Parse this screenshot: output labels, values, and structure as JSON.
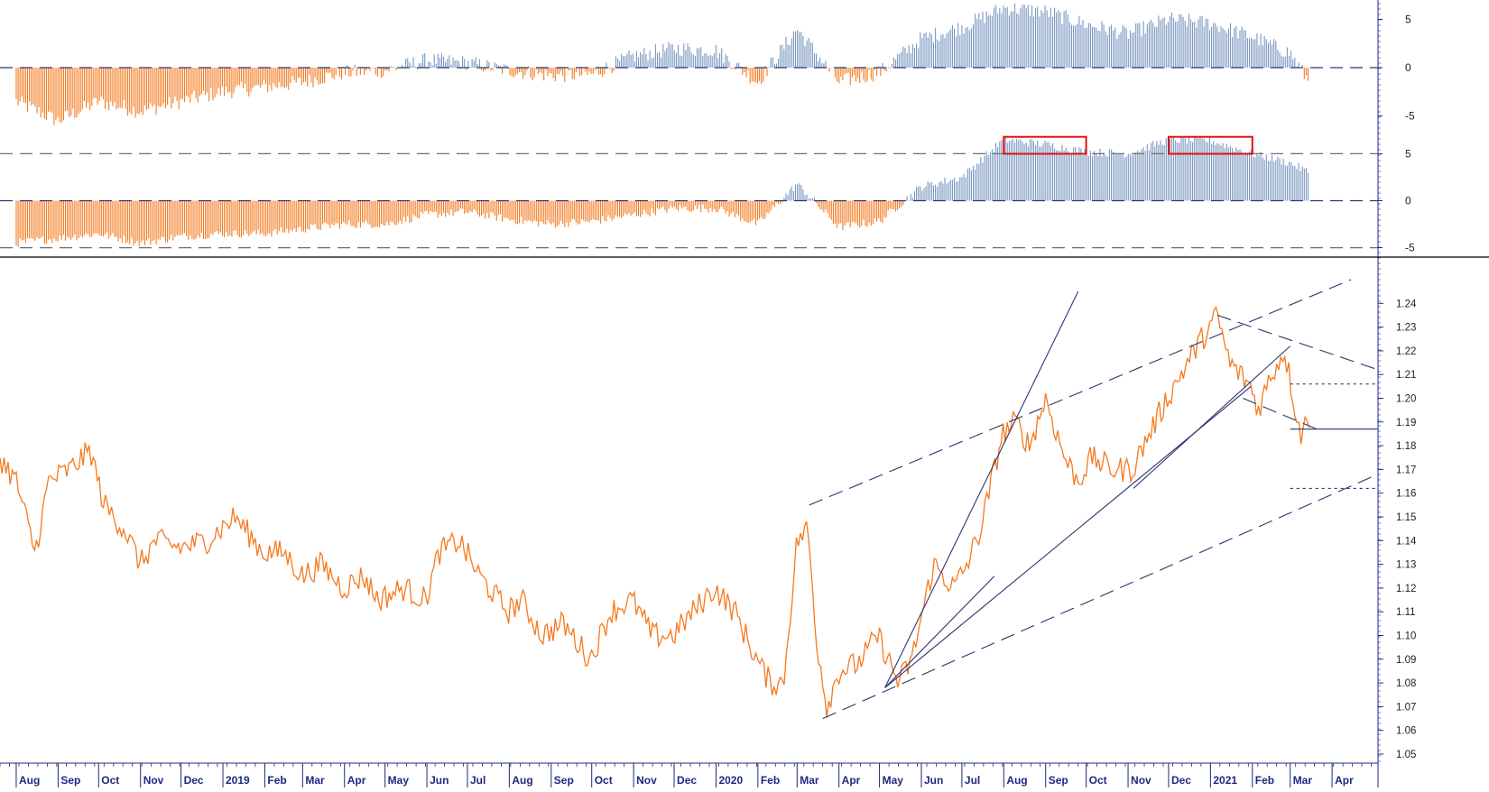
{
  "colors": {
    "up": "#7a97c0",
    "down": "#f47a1f",
    "price": "#f47a1f",
    "trend": "#2e3470",
    "highlight": "#e01010",
    "axis_text": "#1c2a80",
    "grid": "#6f6f6f"
  },
  "chart_data": [
    {
      "type": "bar",
      "panel": "oscillator-top",
      "ylim": [
        -7,
        7
      ],
      "ytick_labels": [
        "5",
        "0",
        "-5"
      ],
      "ytick_values": [
        5,
        0,
        -5
      ],
      "reference_lines": [
        0
      ],
      "series": [
        {
          "x": [
            "2018-08-01",
            "2018-09-01",
            "2018-10-01",
            "2018-11-01",
            "2018-12-01",
            "2019-01-01",
            "2019-02-01",
            "2019-03-01",
            "2019-04-01",
            "2019-05-01",
            "2019-06-01",
            "2019-07-01",
            "2019-08-01",
            "2019-09-01",
            "2019-10-01",
            "2019-11-01",
            "2019-12-01",
            "2020-01-01",
            "2020-02-01",
            "2020-03-01",
            "2020-04-01",
            "2020-05-01",
            "2020-06-01",
            "2020-07-01",
            "2020-08-01",
            "2020-09-01",
            "2020-10-01",
            "2020-11-01",
            "2020-12-01",
            "2021-01-01",
            "2021-02-01",
            "2021-03-01",
            "2021-03-15"
          ],
          "values": [
            -3.5,
            -5.5,
            -3.5,
            -4.5,
            -3.5,
            -2.5,
            -2,
            -1.5,
            -0.5,
            -0.3,
            0.8,
            0.5,
            -0.3,
            -0.8,
            -0.7,
            1.2,
            2,
            1.8,
            -1.5,
            4,
            -1.5,
            -0.5,
            3,
            4.2,
            6.2,
            5.8,
            4.5,
            3.5,
            5,
            4.6,
            3.2,
            1.5,
            -1.5
          ]
        }
      ]
    },
    {
      "type": "bar",
      "panel": "oscillator-middle",
      "ylim": [
        -6,
        6
      ],
      "ytick_labels": [
        "5",
        "0",
        "-5"
      ],
      "ytick_values": [
        5,
        0,
        -5
      ],
      "reference_lines": [
        5,
        0,
        -5
      ],
      "highlight_ranges": [
        [
          "2020-08-01",
          "2020-10-01"
        ],
        [
          "2020-12-01",
          "2021-02-01"
        ]
      ],
      "series": [
        {
          "x": [
            "2018-08-01",
            "2018-09-01",
            "2018-10-01",
            "2018-11-01",
            "2018-12-01",
            "2019-01-01",
            "2019-02-01",
            "2019-03-01",
            "2019-04-01",
            "2019-05-01",
            "2019-06-01",
            "2019-07-01",
            "2019-08-01",
            "2019-09-01",
            "2019-10-01",
            "2019-11-01",
            "2019-12-01",
            "2020-01-01",
            "2020-02-01",
            "2020-03-01",
            "2020-04-01",
            "2020-05-01",
            "2020-06-01",
            "2020-07-01",
            "2020-08-01",
            "2020-09-01",
            "2020-10-01",
            "2020-11-01",
            "2020-12-01",
            "2021-01-01",
            "2021-02-01",
            "2021-03-01",
            "2021-03-15"
          ],
          "values": [
            -4.5,
            -4,
            -3.5,
            -4.5,
            -3.8,
            -3.5,
            -3.5,
            -3,
            -2.5,
            -2.5,
            -1.5,
            -1.2,
            -2,
            -2.5,
            -2.2,
            -1.5,
            -0.8,
            -0.8,
            -2.5,
            1.8,
            -2.8,
            -2.2,
            1.5,
            2.5,
            6.5,
            6,
            5.2,
            5,
            6.5,
            6.4,
            5,
            4,
            3
          ]
        }
      ]
    },
    {
      "type": "line",
      "panel": "price",
      "ylim": [
        1.05,
        1.25
      ],
      "ytick_labels": [
        "1.24",
        "1.23",
        "1.22",
        "1.21",
        "1.20",
        "1.19",
        "1.18",
        "1.17",
        "1.16",
        "1.15",
        "1.14",
        "1.13",
        "1.12",
        "1.11",
        "1.10",
        "1.09",
        "1.08",
        "1.07",
        "1.06",
        "1.05"
      ],
      "ytick_values": [
        1.24,
        1.23,
        1.22,
        1.21,
        1.2,
        1.19,
        1.18,
        1.17,
        1.16,
        1.15,
        1.14,
        1.13,
        1.12,
        1.11,
        1.1,
        1.09,
        1.08,
        1.07,
        1.06,
        1.05
      ],
      "xlim": [
        "2018-07-20",
        "2021-05-05"
      ],
      "xtick_labels": [
        "Aug",
        "Sep",
        "Oct",
        "Nov",
        "Dec",
        "2019",
        "Feb",
        "Mar",
        "Apr",
        "May",
        "Jun",
        "Jul",
        "Aug",
        "Sep",
        "Oct",
        "Nov",
        "Dec",
        "2020",
        "Feb",
        "Mar",
        "Apr",
        "May",
        "Jun",
        "Jul",
        "Aug",
        "Sep",
        "Oct",
        "Nov",
        "Dec",
        "2021",
        "Feb",
        "Mar",
        "Apr"
      ],
      "xtick_values": [
        "2018-08-01",
        "2018-09-01",
        "2018-10-01",
        "2018-11-01",
        "2018-12-01",
        "2019-01-01",
        "2019-02-01",
        "2019-03-01",
        "2019-04-01",
        "2019-05-01",
        "2019-06-01",
        "2019-07-01",
        "2019-08-01",
        "2019-09-01",
        "2019-10-01",
        "2019-11-01",
        "2019-12-01",
        "2020-01-01",
        "2020-02-01",
        "2020-03-01",
        "2020-04-01",
        "2020-05-01",
        "2020-06-01",
        "2020-07-01",
        "2020-08-01",
        "2020-09-01",
        "2020-10-01",
        "2020-11-01",
        "2020-12-01",
        "2021-01-01",
        "2021-02-01",
        "2021-03-01",
        "2021-04-01"
      ],
      "series": [
        {
          "x": [
            "2018-07-20",
            "2018-08-01",
            "2018-08-15",
            "2018-08-25",
            "2018-09-10",
            "2018-09-25",
            "2018-10-05",
            "2018-10-20",
            "2018-11-01",
            "2018-11-12",
            "2018-12-01",
            "2018-12-20",
            "2019-01-10",
            "2019-01-31",
            "2019-02-15",
            "2019-03-01",
            "2019-03-15",
            "2019-03-31",
            "2019-04-15",
            "2019-04-26",
            "2019-05-15",
            "2019-05-31",
            "2019-06-10",
            "2019-06-25",
            "2019-07-10",
            "2019-07-31",
            "2019-08-10",
            "2019-08-25",
            "2019-09-10",
            "2019-09-30",
            "2019-10-15",
            "2019-10-31",
            "2019-11-15",
            "2019-11-30",
            "2019-12-15",
            "2019-12-31",
            "2020-01-15",
            "2020-01-31",
            "2020-02-10",
            "2020-02-20",
            "2020-03-01",
            "2020-03-09",
            "2020-03-15",
            "2020-03-23",
            "2020-04-01",
            "2020-04-15",
            "2020-04-30",
            "2020-05-15",
            "2020-05-25",
            "2020-06-10",
            "2020-06-25",
            "2020-07-05",
            "2020-07-15",
            "2020-07-31",
            "2020-08-10",
            "2020-08-20",
            "2020-09-01",
            "2020-09-15",
            "2020-09-25",
            "2020-10-05",
            "2020-10-20",
            "2020-11-04",
            "2020-11-15",
            "2020-11-30",
            "2020-12-10",
            "2020-12-20",
            "2021-01-06",
            "2021-01-15",
            "2021-01-31",
            "2021-02-05",
            "2021-02-15",
            "2021-02-25",
            "2021-03-05",
            "2021-03-09",
            "2021-03-15"
          ],
          "values": [
            1.175,
            1.165,
            1.135,
            1.165,
            1.17,
            1.178,
            1.155,
            1.145,
            1.13,
            1.14,
            1.137,
            1.14,
            1.15,
            1.135,
            1.135,
            1.125,
            1.13,
            1.12,
            1.125,
            1.115,
            1.12,
            1.115,
            1.135,
            1.14,
            1.125,
            1.11,
            1.115,
            1.1,
            1.105,
            1.09,
            1.11,
            1.115,
            1.1,
            1.1,
            1.11,
            1.12,
            1.11,
            1.09,
            1.08,
            1.08,
            1.14,
            1.145,
            1.1,
            1.07,
            1.085,
            1.088,
            1.1,
            1.08,
            1.09,
            1.13,
            1.12,
            1.13,
            1.145,
            1.185,
            1.19,
            1.18,
            1.2,
            1.175,
            1.165,
            1.175,
            1.17,
            1.17,
            1.183,
            1.2,
            1.21,
            1.22,
            1.235,
            1.215,
            1.205,
            1.195,
            1.21,
            1.22,
            1.195,
            1.185,
            1.192
          ]
        }
      ]
    }
  ]
}
